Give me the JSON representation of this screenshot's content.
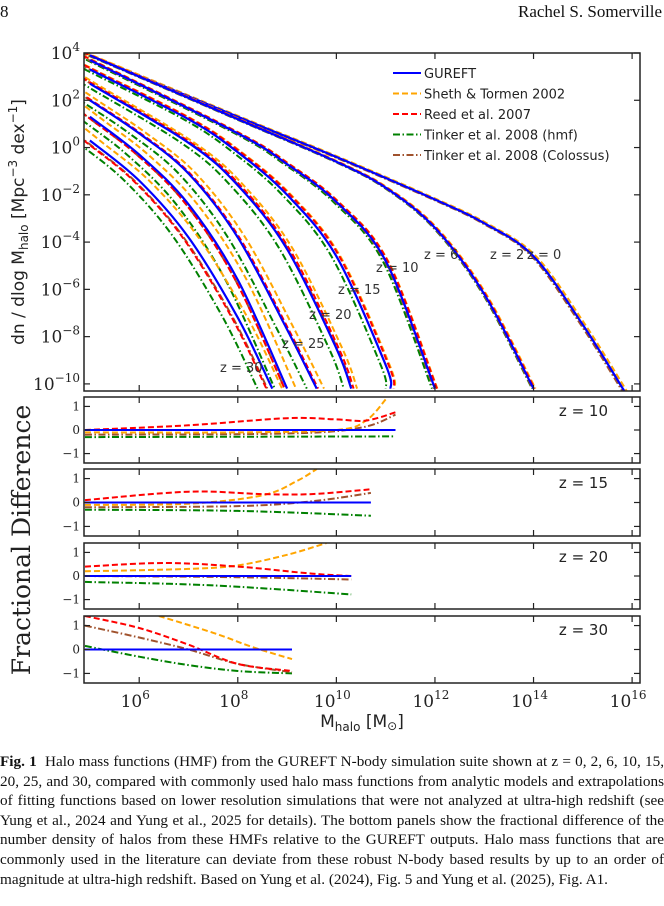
{
  "header": {
    "page_number": "8",
    "author": "Rachel S. Somerville"
  },
  "chart_data": [
    {
      "type": "line",
      "title": "",
      "xlabel": "M_halo [M_sun]",
      "ylabel": "dn / dlog M_halo [Mpc^-3 dex^-1]",
      "xscale": "log",
      "yscale": "log",
      "xlim": [
        100000.0,
        1e+16
      ],
      "ylim": [
        1e-10,
        10000.0
      ],
      "x_ticks": [
        "10^6",
        "10^8",
        "10^10",
        "10^12",
        "10^14",
        "10^16"
      ],
      "y_ticks": [
        "10^4",
        "10^2",
        "10^0",
        "10^-2",
        "10^-4",
        "10^-6",
        "10^-8",
        "10^-10"
      ],
      "legend_position": "top-right",
      "legend": [
        {
          "name": "GUREFT",
          "color": "#0000ff",
          "style": "solid"
        },
        {
          "name": "Sheth & Tormen 2002",
          "color": "#ffa500",
          "style": "dashed"
        },
        {
          "name": "Reed et al. 2007",
          "color": "#ff0000",
          "style": "dashed"
        },
        {
          "name": "Tinker et al. 2008 (hmf)",
          "color": "#008000",
          "style": "dashdot"
        },
        {
          "name": "Tinker et al. 2008 (Colossus)",
          "color": "#a0522d",
          "style": "dashdot"
        }
      ],
      "redshift_labels": [
        "z = 0",
        "z = 2",
        "z = 6",
        "z = 10",
        "z = 15",
        "z = 20",
        "z = 25",
        "z = 30"
      ],
      "series_gureft": [
        {
          "z": 0,
          "log_n_at_logM": [
            [
              5,
              3.9
            ],
            [
              8,
              1.3
            ],
            [
              10,
              -0.4
            ],
            [
              12,
              -2.2
            ],
            [
              13,
              -3.2
            ],
            [
              14,
              -4.6
            ],
            [
              15,
              -7.5
            ],
            [
              15.9,
              -10.5
            ]
          ]
        },
        {
          "z": 2,
          "log_n_at_logM": [
            [
              5,
              3.9
            ],
            [
              8,
              1.2
            ],
            [
              10,
              -0.6
            ],
            [
              11,
              -1.7
            ],
            [
              12,
              -3.4
            ],
            [
              13,
              -6.2
            ],
            [
              14,
              -10.2
            ]
          ]
        },
        {
          "z": 6,
          "log_n_at_logM": [
            [
              5,
              3.7
            ],
            [
              8,
              0.6
            ],
            [
              9,
              -0.7
            ],
            [
              10,
              -2.3
            ],
            [
              11,
              -4.8
            ],
            [
              12,
              -10.2
            ]
          ]
        },
        {
          "z": 10,
          "log_n_at_logM": [
            [
              5,
              3.3
            ],
            [
              7,
              1.2
            ],
            [
              8,
              -0.2
            ],
            [
              9,
              -2.0
            ],
            [
              10,
              -4.6
            ],
            [
              11,
              -9.2
            ],
            [
              11.1,
              -10.2
            ]
          ]
        },
        {
          "z": 15,
          "log_n_at_logM": [
            [
              5,
              2.7
            ],
            [
              7,
              0.2
            ],
            [
              8,
              -1.6
            ],
            [
              9,
              -4.3
            ],
            [
              10,
              -8.5
            ],
            [
              10.3,
              -10.2
            ]
          ]
        },
        {
          "z": 20,
          "log_n_at_logM": [
            [
              5,
              2.0
            ],
            [
              6,
              0.6
            ],
            [
              7,
              -1.1
            ],
            [
              8,
              -3.8
            ],
            [
              9,
              -7.7
            ],
            [
              9.6,
              -10.2
            ]
          ]
        },
        {
          "z": 25,
          "log_n_at_logM": [
            [
              5,
              1.3
            ],
            [
              6,
              -0.3
            ],
            [
              7,
              -2.4
            ],
            [
              8,
              -5.6
            ],
            [
              9,
              -10.2
            ]
          ]
        },
        {
          "z": 30,
          "log_n_at_logM": [
            [
              5,
              0.3
            ],
            [
              6,
              -1.4
            ],
            [
              7,
              -3.8
            ],
            [
              8,
              -7.2
            ],
            [
              8.7,
              -10.2
            ]
          ]
        }
      ]
    },
    {
      "type": "line",
      "panel": "z = 10",
      "ylabel": "Fractional Difference",
      "ylim": [
        -1.4,
        1.4
      ],
      "y_ticks": [
        "1",
        "0",
        "-1"
      ],
      "series": [
        {
          "name": "GUREFT",
          "points": [
            [
              4.9,
              0
            ],
            [
              11.2,
              0
            ]
          ]
        },
        {
          "name": "Sheth & Tormen 2002",
          "points": [
            [
              4.9,
              -0.1
            ],
            [
              8,
              -0.1
            ],
            [
              10,
              0.0
            ],
            [
              10.6,
              0.4
            ],
            [
              11.0,
              1.3
            ]
          ]
        },
        {
          "name": "Reed et al. 2007",
          "points": [
            [
              4.9,
              0.0
            ],
            [
              7,
              0.2
            ],
            [
              9,
              0.5
            ],
            [
              10,
              0.45
            ],
            [
              10.6,
              0.4
            ],
            [
              11.2,
              0.75
            ]
          ]
        },
        {
          "name": "Tinker et al. 2008 (hmf)",
          "points": [
            [
              4.9,
              -0.3
            ],
            [
              11.2,
              -0.27
            ]
          ]
        },
        {
          "name": "Tinker et al. 2008 (Colossus)",
          "points": [
            [
              4.9,
              -0.2
            ],
            [
              9,
              -0.15
            ],
            [
              10.5,
              0.1
            ],
            [
              11.2,
              0.65
            ]
          ]
        }
      ]
    },
    {
      "type": "line",
      "panel": "z = 15",
      "ylim": [
        -1.4,
        1.4
      ],
      "y_ticks": [
        "1",
        "0",
        "-1"
      ],
      "series": [
        {
          "name": "GUREFT",
          "points": [
            [
              4.9,
              0
            ],
            [
              10.7,
              0
            ]
          ]
        },
        {
          "name": "Sheth & Tormen 2002",
          "points": [
            [
              4.9,
              -0.1
            ],
            [
              7,
              -0.05
            ],
            [
              8.5,
              0.3
            ],
            [
              9.2,
              0.9
            ],
            [
              9.6,
              1.4
            ]
          ]
        },
        {
          "name": "Reed et al. 2007",
          "points": [
            [
              4.9,
              0.1
            ],
            [
              7,
              0.45
            ],
            [
              8.5,
              0.35
            ],
            [
              9.5,
              0.35
            ],
            [
              10.7,
              0.55
            ]
          ]
        },
        {
          "name": "Tinker et al. 2008 (hmf)",
          "points": [
            [
              4.9,
              -0.3
            ],
            [
              8,
              -0.35
            ],
            [
              10.7,
              -0.55
            ]
          ]
        },
        {
          "name": "Tinker et al. 2008 (Colossus)",
          "points": [
            [
              4.9,
              -0.2
            ],
            [
              8,
              -0.15
            ],
            [
              9.5,
              0.05
            ],
            [
              10.7,
              0.4
            ]
          ]
        }
      ]
    },
    {
      "type": "line",
      "panel": "z = 20",
      "ylim": [
        -1.4,
        1.4
      ],
      "y_ticks": [
        "1",
        "0",
        "-1"
      ],
      "series": [
        {
          "name": "GUREFT",
          "points": [
            [
              4.9,
              0
            ],
            [
              10.3,
              0
            ]
          ]
        },
        {
          "name": "Sheth & Tormen 2002",
          "points": [
            [
              4.9,
              0.2
            ],
            [
              7,
              0.3
            ],
            [
              8,
              0.45
            ],
            [
              9,
              0.9
            ],
            [
              9.8,
              1.4
            ]
          ]
        },
        {
          "name": "Reed et al. 2007",
          "points": [
            [
              4.9,
              0.4
            ],
            [
              6.5,
              0.55
            ],
            [
              8,
              0.4
            ],
            [
              9.5,
              0.1
            ],
            [
              10.3,
              0.0
            ]
          ]
        },
        {
          "name": "Tinker et al. 2008 (hmf)",
          "points": [
            [
              4.9,
              -0.25
            ],
            [
              7.5,
              -0.4
            ],
            [
              10.3,
              -0.78
            ]
          ]
        },
        {
          "name": "Tinker et al. 2008 (Colossus)",
          "points": [
            [
              4.9,
              0.0
            ],
            [
              8,
              -0.05
            ],
            [
              10.3,
              -0.15
            ]
          ]
        }
      ]
    },
    {
      "type": "line",
      "panel": "z = 30",
      "xlabel": "M_halo [M_sun]",
      "ylim": [
        -1.4,
        1.4
      ],
      "y_ticks": [
        "1",
        "0",
        "-1"
      ],
      "series": [
        {
          "name": "GUREFT",
          "points": [
            [
              4.9,
              0
            ],
            [
              9.1,
              0
            ]
          ]
        },
        {
          "name": "Sheth & Tormen 2002",
          "points": [
            [
              6.4,
              1.4
            ],
            [
              7.5,
              0.7
            ],
            [
              8.3,
              0.1
            ],
            [
              9.1,
              -0.4
            ]
          ]
        },
        {
          "name": "Reed et al. 2007",
          "points": [
            [
              4.9,
              1.4
            ],
            [
              6,
              0.9
            ],
            [
              7,
              0.2
            ],
            [
              8,
              -0.6
            ],
            [
              9.1,
              -0.9
            ]
          ]
        },
        {
          "name": "Tinker et al. 2008 (hmf)",
          "points": [
            [
              4.9,
              0.15
            ],
            [
              6,
              -0.3
            ],
            [
              7,
              -0.65
            ],
            [
              8,
              -0.9
            ],
            [
              9.1,
              -1.0
            ]
          ]
        },
        {
          "name": "Tinker et al. 2008 (Colossus)",
          "points": [
            [
              4.9,
              1.0
            ],
            [
              6,
              0.5
            ],
            [
              7,
              0.0
            ],
            [
              8,
              -0.6
            ],
            [
              9.1,
              -0.95
            ]
          ]
        }
      ]
    }
  ],
  "panels": {
    "main_ylabel": "dn / dlog M",
    "main_ylabel_sub": "halo",
    "main_ylabel_unit": " [Mpc",
    "main_ylabel_sup": "−3",
    "main_ylabel_tail": " dex",
    "main_ylabel_sup2": "−1",
    "main_ylabel_end": "]",
    "frac_ylabel": "Fractional Difference",
    "xlabel_main": "M",
    "xlabel_sub": "halo",
    "xlabel_unit": " [M",
    "xlabel_sun": "⊙",
    "xlabel_end": "]"
  },
  "caption": {
    "label": "Fig. 1",
    "text": "Halo mass functions (HMF) from the GUREFT N-body simulation suite shown at z = 0, 2, 6, 10, 15, 20, 25, and 30, compared with commonly used halo mass functions from analytic models and extrapolations of fitting functions based on lower resolution simulations that were not analyzed at ultra-high redshift (see Yung et al., 2024 and Yung et al., 2025 for details). The bottom panels show the fractional difference of the number density of halos from these HMFs relative to the GUREFT outputs. Halo mass functions that are commonly used in the literature can deviate from these robust N-body based results by up to an order of magnitude at ultra-high redshift. Based on Yung et al. (2024), Fig. 5 and Yung et al. (2025), Fig. A1."
  }
}
